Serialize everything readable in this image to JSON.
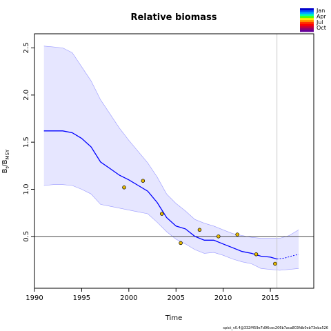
{
  "chart_data": {
    "type": "line",
    "title": "Relative biomass",
    "xlabel": "Time",
    "ylabel_main": "B",
    "ylabel_sub1": "t",
    "ylabel_mid": "/B",
    "ylabel_sub2": "MSY",
    "xlim": [
      1990,
      2019.6
    ],
    "ylim": [
      -0.05,
      2.65
    ],
    "x_ticks": [
      1990,
      1995,
      2000,
      2005,
      2010,
      2015
    ],
    "x_tick_labels": [
      "1990",
      "1995",
      "2000",
      "2005",
      "2010",
      "2015"
    ],
    "y_ticks": [
      0.5,
      1.0,
      1.5,
      2.0,
      2.5
    ],
    "y_tick_labels": [
      "0.5",
      "1.0",
      "1.5",
      "2.0",
      "2.5"
    ],
    "reference_line_y": 0.5,
    "vertical_line_x": 2015.7,
    "band_color": "#e6e6ff",
    "band_edge_color": "#9999ff",
    "line_color": "#0000ff",
    "point_fill": "#e6b800",
    "series": [
      {
        "role": "estimate",
        "x": [
          1991,
          1992,
          1993,
          1994,
          1995,
          1996,
          1997,
          1998,
          1999,
          2000,
          2001,
          2002,
          2003,
          2004,
          2005,
          2006,
          2007,
          2008,
          2009,
          2010,
          2011,
          2012,
          2013,
          2014,
          2015,
          2015.7
        ],
        "y": [
          1.62,
          1.62,
          1.62,
          1.6,
          1.54,
          1.45,
          1.29,
          1.22,
          1.15,
          1.1,
          1.04,
          0.98,
          0.86,
          0.7,
          0.61,
          0.58,
          0.5,
          0.46,
          0.46,
          0.42,
          0.38,
          0.34,
          0.32,
          0.29,
          0.28,
          0.26
        ]
      },
      {
        "role": "forecast",
        "x": [
          2015.7,
          2016.5,
          2017.2,
          2018
        ],
        "y": [
          0.26,
          0.27,
          0.29,
          0.31
        ]
      },
      {
        "role": "ci_upper",
        "x": [
          1991,
          1992,
          1993,
          1994,
          1995,
          1996,
          1997,
          1998,
          1999,
          2000,
          2001,
          2002,
          2003,
          2004,
          2005,
          2006,
          2007,
          2008,
          2009,
          2010,
          2011,
          2012,
          2013,
          2014,
          2015,
          2016,
          2017,
          2018
        ],
        "y": [
          2.52,
          2.51,
          2.5,
          2.45,
          2.3,
          2.15,
          1.95,
          1.8,
          1.65,
          1.52,
          1.4,
          1.28,
          1.13,
          0.95,
          0.85,
          0.77,
          0.68,
          0.64,
          0.61,
          0.57,
          0.53,
          0.51,
          0.49,
          0.48,
          0.48,
          0.48,
          0.51,
          0.57
        ]
      },
      {
        "role": "ci_lower",
        "x": [
          1991,
          1992,
          1993,
          1994,
          1995,
          1996,
          1997,
          1998,
          1999,
          2000,
          2001,
          2002,
          2003,
          2004,
          2005,
          2006,
          2007,
          2008,
          2009,
          2010,
          2011,
          2012,
          2013,
          2014,
          2015,
          2016,
          2017,
          2018
        ],
        "y": [
          1.04,
          1.05,
          1.05,
          1.04,
          1.0,
          0.95,
          0.84,
          0.82,
          0.8,
          0.78,
          0.76,
          0.74,
          0.65,
          0.55,
          0.47,
          0.42,
          0.36,
          0.32,
          0.33,
          0.3,
          0.26,
          0.23,
          0.21,
          0.16,
          0.15,
          0.14,
          0.15,
          0.16
        ]
      }
    ],
    "observations": {
      "x": [
        1999.5,
        2001.5,
        2003.5,
        2005.5,
        2007.5,
        2009.5,
        2011.5,
        2013.5,
        2015.5
      ],
      "y": [
        1.02,
        1.09,
        0.74,
        0.43,
        0.57,
        0.5,
        0.52,
        0.31,
        0.21
      ]
    },
    "legend": {
      "position": "top-right",
      "labels": [
        "Jan",
        "Apr",
        "Jul",
        "Oct"
      ],
      "colors": [
        "#0000cc",
        "#0055ff",
        "#00aaff",
        "#00ffaa",
        "#55ff00",
        "#ffee00",
        "#ff9900",
        "#ff3300",
        "#ff0000",
        "#cc0033",
        "#990066",
        "#660099"
      ]
    },
    "footer": "spict_v0.4@332f459e7d96cec206b7aca803fdb0eb73eba526"
  }
}
